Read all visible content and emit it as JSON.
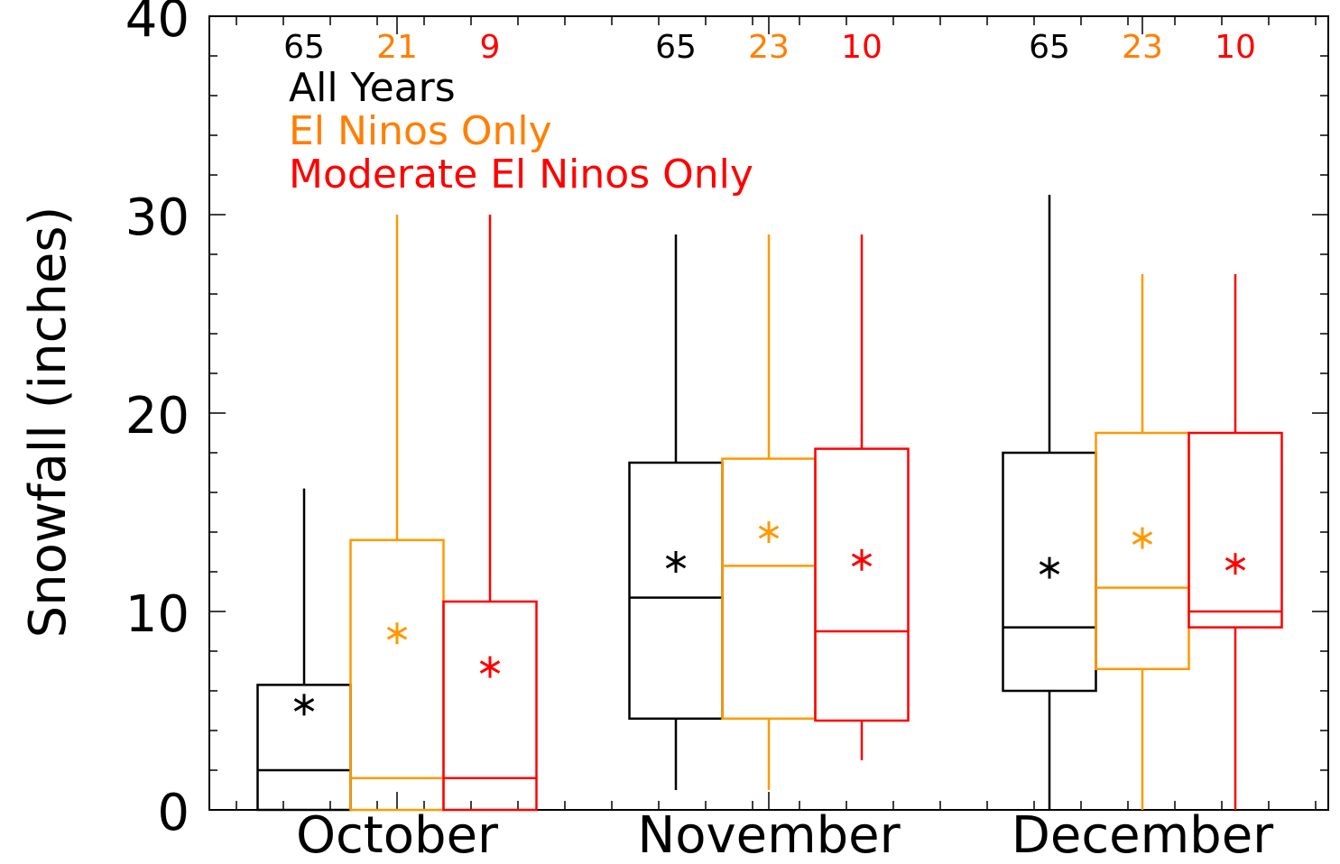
{
  "chart_data": {
    "type": "box",
    "ylabel": "Snowfall (inches)",
    "xlabel": "",
    "ylim": [
      0,
      40
    ],
    "yticks": [
      0,
      10,
      20,
      30,
      40
    ],
    "categories": [
      "October",
      "November",
      "December"
    ],
    "legend": {
      "placement": "top-left",
      "entries": [
        {
          "label": "All Years",
          "color": "#000000"
        },
        {
          "label": "El Ninos Only",
          "color": "#ff7f00"
        },
        {
          "label": "Moderate El Ninos Only",
          "color": "#ff0000"
        }
      ]
    },
    "series": [
      {
        "name": "All Years",
        "color": "#000000",
        "boxes": [
          {
            "category": "October",
            "n": "65",
            "min": 0,
            "q1": 0,
            "median": 2,
            "q3": 6.3,
            "max": 16.2,
            "mean": 5.3
          },
          {
            "category": "November",
            "n": "65",
            "min": 1,
            "q1": 4.6,
            "median": 10.7,
            "q3": 17.5,
            "max": 29,
            "mean": 12.5
          },
          {
            "category": "December",
            "n": "65",
            "min": 0,
            "q1": 6,
            "median": 9.2,
            "q3": 18,
            "max": 31,
            "mean": 12.2
          }
        ]
      },
      {
        "name": "El Ninos Only",
        "color": "#ff9900",
        "boxes": [
          {
            "category": "October",
            "n": "21",
            "min": 0,
            "q1": 0,
            "median": 1.6,
            "q3": 13.6,
            "max": 30,
            "mean": 8.9
          },
          {
            "category": "November",
            "n": "23",
            "min": 1,
            "q1": 4.6,
            "median": 12.3,
            "q3": 17.7,
            "max": 29,
            "mean": 14
          },
          {
            "category": "December",
            "n": "23",
            "min": 0,
            "q1": 7.1,
            "median": 11.2,
            "q3": 19,
            "max": 27,
            "mean": 13.7
          }
        ]
      },
      {
        "name": "Moderate El Ninos Only",
        "color": "#ff0000",
        "boxes": [
          {
            "category": "October",
            "n": "9",
            "min": 0,
            "q1": 0,
            "median": 1.6,
            "q3": 10.5,
            "max": 30,
            "mean": 7.2
          },
          {
            "category": "November",
            "n": "10",
            "min": 2.5,
            "q1": 4.5,
            "median": 9,
            "q3": 18.2,
            "max": 29,
            "mean": 12.6
          },
          {
            "category": "December",
            "n": "10",
            "min": 0,
            "q1": 9.2,
            "median": 10,
            "q3": 19,
            "max": 27,
            "mean": 12.4
          }
        ]
      }
    ],
    "grid": false
  },
  "count_colors": [
    "#000000",
    "#ff7f00",
    "#ff0000"
  ]
}
